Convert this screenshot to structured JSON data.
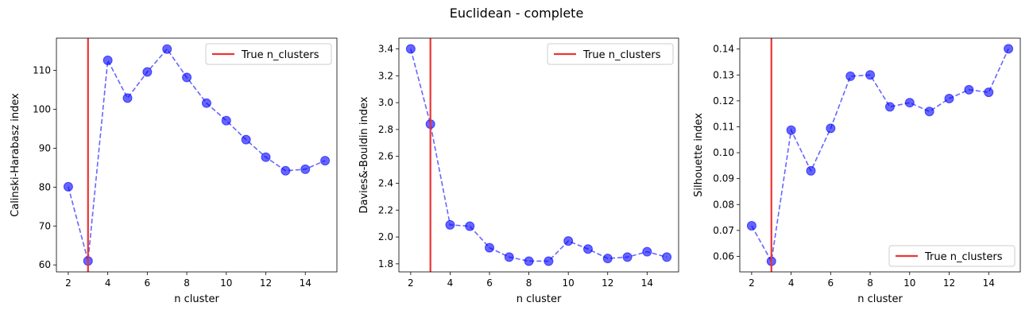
{
  "figure": {
    "suptitle": "Euclidean - complete"
  },
  "colors": {
    "series": "#0000ff",
    "true_line": "#ee3333"
  },
  "chart_data": [
    {
      "type": "line",
      "title": "",
      "xlabel": "n cluster",
      "ylabel": "Calinski-Harabasz index",
      "x": [
        2,
        3,
        4,
        5,
        6,
        7,
        8,
        9,
        10,
        11,
        12,
        13,
        14,
        15
      ],
      "series": [
        {
          "values": [
            80.1,
            61.0,
            112.6,
            102.9,
            109.6,
            115.5,
            108.2,
            101.6,
            97.1,
            92.2,
            87.7,
            84.2,
            84.6,
            86.8
          ]
        }
      ],
      "vline": {
        "x": 3,
        "label": "True n_clusters"
      },
      "xlim": [
        1.4,
        15.6
      ],
      "ylim": [
        58.2,
        118.3
      ],
      "xticks": [
        2,
        4,
        6,
        8,
        10,
        12,
        14
      ],
      "yticks": [
        60,
        70,
        80,
        90,
        100,
        110
      ],
      "ytick_labels": [
        "60",
        "70",
        "80",
        "90",
        "100",
        "110"
      ],
      "legend": "upper right",
      "grid": false
    },
    {
      "type": "line",
      "title": "",
      "xlabel": "n cluster",
      "ylabel": "Davies&-Bouldin index",
      "x": [
        2,
        3,
        4,
        5,
        6,
        7,
        8,
        9,
        10,
        11,
        12,
        13,
        14,
        15
      ],
      "series": [
        {
          "values": [
            3.4,
            2.84,
            2.09,
            2.08,
            1.92,
            1.85,
            1.82,
            1.82,
            1.97,
            1.91,
            1.84,
            1.85,
            1.89,
            1.85
          ]
        }
      ],
      "vline": {
        "x": 3,
        "label": "True n_clusters"
      },
      "xlim": [
        1.4,
        15.6
      ],
      "ylim": [
        1.74,
        3.48
      ],
      "xticks": [
        2,
        4,
        6,
        8,
        10,
        12,
        14
      ],
      "yticks": [
        1.8,
        2.0,
        2.2,
        2.4,
        2.6,
        2.8,
        3.0,
        3.2,
        3.4
      ],
      "ytick_labels": [
        "1.8",
        "2.0",
        "2.2",
        "2.4",
        "2.6",
        "2.8",
        "3.0",
        "3.2",
        "3.4"
      ],
      "legend": "upper right",
      "grid": false
    },
    {
      "type": "line",
      "title": "",
      "xlabel": "n cluster",
      "ylabel": "Silhouette index",
      "x": [
        2,
        3,
        4,
        5,
        6,
        7,
        8,
        9,
        10,
        11,
        12,
        13,
        14,
        15
      ],
      "series": [
        {
          "values": [
            0.0718,
            0.0581,
            0.1087,
            0.093,
            0.1094,
            0.1295,
            0.13,
            0.1177,
            0.1193,
            0.1159,
            0.1209,
            0.1243,
            0.1233,
            0.1401
          ]
        }
      ],
      "vline": {
        "x": 3,
        "label": "True n_clusters"
      },
      "xlim": [
        1.4,
        15.6
      ],
      "ylim": [
        0.054,
        0.1442
      ],
      "xticks": [
        2,
        4,
        6,
        8,
        10,
        12,
        14
      ],
      "yticks": [
        0.06,
        0.07,
        0.08,
        0.09,
        0.1,
        0.11,
        0.12,
        0.13,
        0.14
      ],
      "ytick_labels": [
        "0.06",
        "0.07",
        "0.08",
        "0.09",
        "0.10",
        "0.11",
        "0.12",
        "0.13",
        "0.14"
      ],
      "legend": "lower right",
      "grid": false
    }
  ]
}
